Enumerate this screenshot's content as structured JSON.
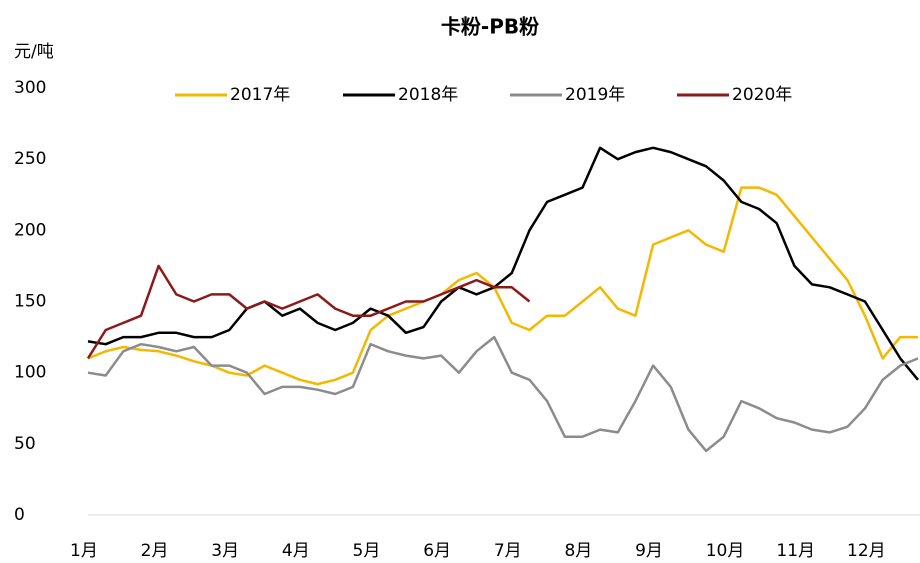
{
  "chart_data": {
    "type": "line",
    "title": "卡粉-PB粉",
    "y_label": "元/吨",
    "categories": [
      "1月",
      null,
      null,
      null,
      "2月",
      null,
      null,
      null,
      "3月",
      null,
      null,
      null,
      "4月",
      null,
      null,
      null,
      "5月",
      null,
      null,
      null,
      "6月",
      null,
      null,
      null,
      "7月",
      null,
      null,
      null,
      "8月",
      null,
      null,
      null,
      "9月",
      null,
      null,
      null,
      "10月",
      null,
      null,
      null,
      "11月",
      null,
      null,
      null,
      "12月",
      null,
      null,
      null
    ],
    "series": [
      {
        "name": "2017年",
        "color": "#f5b800",
        "values": [
          110,
          115,
          118,
          116,
          115,
          112,
          108,
          105,
          100,
          98,
          105,
          100,
          95,
          92,
          95,
          100,
          130,
          140,
          145,
          150,
          155,
          165,
          170,
          160,
          135,
          130,
          140,
          140,
          150,
          160,
          145,
          140,
          190,
          195,
          200,
          190,
          185,
          230,
          230,
          225,
          210,
          195,
          180,
          165,
          140,
          110,
          125,
          125
        ]
      },
      {
        "name": "2018年",
        "color": "#000000",
        "values": [
          122,
          120,
          125,
          125,
          128,
          128,
          125,
          125,
          130,
          145,
          150,
          140,
          145,
          135,
          130,
          135,
          145,
          140,
          128,
          132,
          150,
          160,
          155,
          160,
          170,
          200,
          220,
          225,
          230,
          258,
          250,
          255,
          258,
          255,
          250,
          245,
          235,
          220,
          215,
          205,
          175,
          162,
          160,
          155,
          150,
          130,
          110,
          95
        ]
      },
      {
        "name": "2019年",
        "color": "#8c8c8c",
        "values": [
          100,
          98,
          115,
          120,
          118,
          115,
          118,
          105,
          105,
          100,
          85,
          90,
          90,
          88,
          85,
          90,
          120,
          115,
          112,
          110,
          112,
          100,
          115,
          125,
          100,
          95,
          80,
          55,
          55,
          60,
          58,
          80,
          105,
          90,
          60,
          45,
          55,
          80,
          75,
          68,
          65,
          60,
          58,
          62,
          75,
          95,
          105,
          110
        ]
      },
      {
        "name": "2020年",
        "color": "#8b1a1a",
        "values": [
          110,
          130,
          135,
          140,
          175,
          155,
          150,
          155,
          155,
          145,
          150,
          145,
          150,
          155,
          145,
          140,
          140,
          145,
          150,
          150,
          155,
          160,
          165,
          160,
          160,
          150,
          null,
          null,
          null,
          null,
          null,
          null,
          null,
          null,
          null,
          null,
          null,
          null,
          null,
          null,
          null,
          null,
          null,
          null,
          null,
          null,
          null,
          null
        ]
      }
    ],
    "ylim": [
      0,
      300
    ],
    "yticks": [
      0,
      50,
      100,
      150,
      200,
      250,
      300
    ],
    "grid": false
  }
}
